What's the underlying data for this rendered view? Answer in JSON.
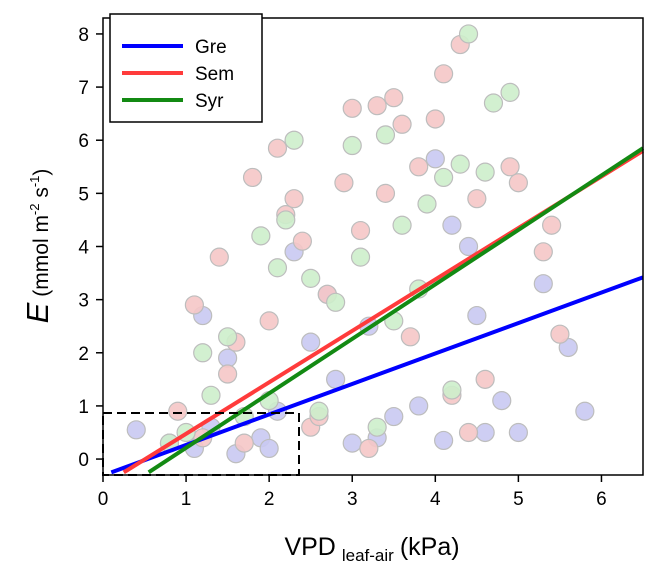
{
  "chart_data": {
    "type": "scatter",
    "xlabel": [
      "VPD",
      "leaf-air",
      "(kPa)"
    ],
    "ylabel": [
      "E",
      "(mmol m",
      "-2",
      " s",
      "-1",
      ")"
    ],
    "xlim": [
      0,
      6.5
    ],
    "ylim": [
      -0.3,
      8.3
    ],
    "xticks": [
      0,
      1,
      2,
      3,
      4,
      5,
      6
    ],
    "yticks": [
      0,
      1,
      2,
      3,
      4,
      5,
      6,
      7,
      8
    ],
    "legend": "upper left",
    "series": [
      {
        "name": "Gre",
        "color": "#0000ff",
        "point_color": "#c9c9f2",
        "x": [
          0.4,
          0.8,
          1.1,
          1.3,
          1.6,
          1.9,
          2.1,
          2.3,
          2.5,
          2.8,
          3.0,
          3.2,
          3.5,
          3.8,
          4.0,
          4.2,
          4.4,
          4.6,
          4.8,
          5.0,
          5.3,
          5.6,
          5.8,
          1.2,
          2.0,
          3.3,
          4.1,
          4.5,
          1.5,
          2.7
        ],
        "y": [
          0.55,
          0.3,
          0.2,
          0.6,
          0.1,
          0.4,
          0.9,
          3.9,
          2.2,
          1.5,
          0.3,
          2.5,
          0.8,
          1.0,
          5.65,
          4.4,
          4.0,
          0.5,
          1.1,
          0.5,
          3.3,
          2.1,
          0.9,
          2.7,
          0.2,
          0.4,
          0.35,
          2.7,
          1.9,
          3.1
        ],
        "fit_x": [
          0.1,
          6.5
        ],
        "fit_y": [
          -0.25,
          3.42
        ]
      },
      {
        "name": "Sem",
        "color": "#ff3b3b",
        "point_color": "#f5c6c6",
        "x": [
          0.9,
          1.1,
          1.2,
          1.4,
          1.5,
          1.7,
          1.8,
          2.0,
          2.1,
          2.2,
          2.3,
          2.4,
          2.5,
          2.7,
          2.9,
          3.0,
          3.1,
          3.3,
          3.4,
          3.5,
          3.6,
          3.7,
          3.8,
          4.0,
          4.1,
          4.2,
          4.3,
          4.5,
          4.6,
          4.9,
          5.0,
          5.3,
          5.4,
          5.5,
          3.2,
          1.6,
          2.6,
          4.4
        ],
        "y": [
          0.9,
          2.9,
          0.4,
          3.8,
          1.6,
          0.3,
          5.3,
          2.6,
          5.85,
          4.6,
          4.9,
          4.1,
          0.6,
          3.1,
          5.2,
          6.6,
          4.3,
          6.65,
          5.0,
          6.8,
          6.3,
          2.3,
          5.5,
          6.4,
          7.25,
          1.2,
          7.8,
          4.9,
          1.5,
          5.5,
          5.2,
          3.9,
          4.4,
          2.35,
          0.2,
          2.2,
          0.8,
          0.5
        ],
        "fit_x": [
          0.25,
          6.5
        ],
        "fit_y": [
          -0.25,
          5.8
        ]
      },
      {
        "name": "Syr",
        "color": "#138a13",
        "point_color": "#cdeecb",
        "x": [
          0.8,
          1.0,
          1.3,
          1.5,
          1.7,
          1.9,
          2.0,
          2.2,
          2.3,
          2.5,
          2.6,
          2.8,
          3.0,
          3.1,
          3.3,
          3.4,
          3.6,
          3.8,
          3.9,
          4.1,
          4.3,
          4.4,
          4.6,
          4.7,
          4.9,
          1.2,
          2.1,
          3.5,
          4.2
        ],
        "y": [
          0.3,
          0.5,
          1.2,
          2.3,
          0.8,
          4.2,
          1.1,
          4.5,
          6.0,
          3.4,
          0.9,
          2.95,
          5.9,
          3.8,
          0.6,
          6.1,
          4.4,
          3.2,
          4.8,
          5.3,
          5.55,
          8.0,
          5.4,
          6.7,
          6.9,
          2.0,
          3.6,
          2.6,
          1.3
        ],
        "fit_x": [
          0.55,
          6.5
        ],
        "fit_y": [
          -0.25,
          5.85
        ]
      }
    ]
  }
}
